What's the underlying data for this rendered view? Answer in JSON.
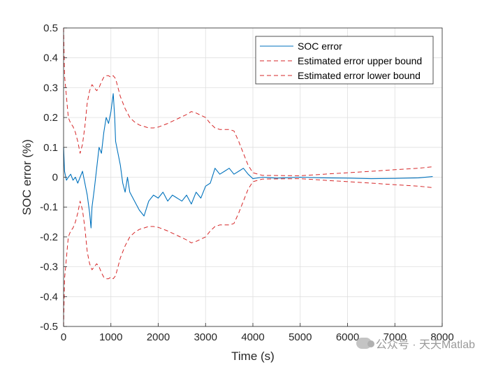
{
  "chart_data": {
    "type": "line",
    "xlabel": "Time (s)",
    "ylabel": "SOC error (%)",
    "xlim": [
      0,
      8000
    ],
    "ylim": [
      -0.5,
      0.5
    ],
    "xticks": [
      0,
      1000,
      2000,
      3000,
      4000,
      5000,
      6000,
      7000,
      8000
    ],
    "yticks": [
      0.5,
      0.4,
      0.3,
      0.2,
      0.1,
      0,
      -0.1,
      -0.2,
      -0.3,
      -0.4,
      -0.5
    ],
    "grid": true,
    "legend_position": "top-right",
    "colors": {
      "soc": "#0072BD",
      "bound": "#D62728",
      "grid": "#dfdfdf",
      "axis": "#262626"
    },
    "series": [
      {
        "name": "SOC error",
        "style": "solid",
        "x": [
          0,
          20,
          60,
          100,
          150,
          200,
          250,
          300,
          350,
          400,
          450,
          500,
          550,
          580,
          600,
          650,
          700,
          750,
          800,
          850,
          900,
          950,
          1000,
          1050,
          1080,
          1100,
          1150,
          1200,
          1250,
          1300,
          1350,
          1400,
          1500,
          1600,
          1700,
          1800,
          1900,
          2000,
          2100,
          2200,
          2300,
          2400,
          2500,
          2600,
          2700,
          2800,
          2900,
          3000,
          3100,
          3200,
          3300,
          3400,
          3500,
          3600,
          3700,
          3800,
          3900,
          4000,
          4200,
          4500,
          5000,
          5500,
          6000,
          6500,
          7000,
          7500,
          7800
        ],
        "y": [
          0.1,
          0.02,
          -0.01,
          0.0,
          0.01,
          -0.01,
          0.0,
          -0.02,
          0.0,
          0.02,
          -0.02,
          -0.06,
          -0.12,
          -0.17,
          -0.1,
          -0.04,
          0.03,
          0.1,
          0.08,
          0.15,
          0.2,
          0.18,
          0.22,
          0.28,
          0.2,
          0.12,
          0.08,
          0.04,
          -0.02,
          -0.05,
          0.0,
          -0.05,
          -0.08,
          -0.11,
          -0.13,
          -0.08,
          -0.06,
          -0.07,
          -0.05,
          -0.08,
          -0.06,
          -0.07,
          -0.08,
          -0.06,
          -0.09,
          -0.05,
          -0.07,
          -0.03,
          -0.02,
          0.03,
          0.01,
          0.02,
          0.03,
          0.01,
          0.02,
          0.03,
          0.01,
          -0.005,
          0.0,
          -0.003,
          0.0,
          -0.002,
          -0.003,
          -0.005,
          -0.004,
          -0.002,
          0.002
        ]
      },
      {
        "name": "Estimated error upper bound",
        "style": "dashed",
        "x": [
          0,
          20,
          60,
          100,
          150,
          200,
          250,
          300,
          350,
          400,
          450,
          500,
          550,
          600,
          650,
          700,
          750,
          800,
          850,
          900,
          950,
          1000,
          1050,
          1100,
          1150,
          1200,
          1300,
          1400,
          1500,
          1600,
          1700,
          1800,
          1900,
          2000,
          2200,
          2400,
          2600,
          2700,
          2800,
          3000,
          3100,
          3200,
          3300,
          3400,
          3500,
          3600,
          3700,
          3800,
          3900,
          4000,
          4200,
          5000,
          5500,
          6000,
          6500,
          7000,
          7500,
          7800
        ],
        "y": [
          0.5,
          0.34,
          0.27,
          0.2,
          0.18,
          0.17,
          0.15,
          0.12,
          0.08,
          0.11,
          0.17,
          0.25,
          0.29,
          0.31,
          0.3,
          0.29,
          0.3,
          0.32,
          0.335,
          0.34,
          0.34,
          0.335,
          0.34,
          0.33,
          0.3,
          0.27,
          0.23,
          0.2,
          0.185,
          0.175,
          0.17,
          0.165,
          0.165,
          0.168,
          0.18,
          0.195,
          0.21,
          0.22,
          0.215,
          0.2,
          0.18,
          0.165,
          0.16,
          0.16,
          0.16,
          0.155,
          0.12,
          0.08,
          0.04,
          0.015,
          0.006,
          0.005,
          0.01,
          0.015,
          0.02,
          0.025,
          0.03,
          0.035
        ]
      },
      {
        "name": "Estimated error lower bound",
        "style": "dashed",
        "x": [
          0,
          20,
          60,
          100,
          150,
          200,
          250,
          300,
          350,
          400,
          450,
          500,
          550,
          600,
          650,
          700,
          750,
          800,
          850,
          900,
          950,
          1000,
          1050,
          1100,
          1150,
          1200,
          1300,
          1400,
          1500,
          1600,
          1700,
          1800,
          1900,
          2000,
          2200,
          2400,
          2600,
          2700,
          2800,
          3000,
          3100,
          3200,
          3300,
          3400,
          3500,
          3600,
          3700,
          3800,
          3900,
          4000,
          4200,
          5000,
          5500,
          6000,
          6500,
          7000,
          7500,
          7800
        ],
        "y": [
          -0.5,
          -0.34,
          -0.27,
          -0.2,
          -0.18,
          -0.17,
          -0.15,
          -0.12,
          -0.08,
          -0.11,
          -0.17,
          -0.25,
          -0.29,
          -0.31,
          -0.3,
          -0.29,
          -0.3,
          -0.32,
          -0.335,
          -0.34,
          -0.34,
          -0.335,
          -0.34,
          -0.33,
          -0.3,
          -0.27,
          -0.23,
          -0.2,
          -0.185,
          -0.175,
          -0.17,
          -0.165,
          -0.165,
          -0.168,
          -0.18,
          -0.195,
          -0.21,
          -0.22,
          -0.215,
          -0.2,
          -0.18,
          -0.165,
          -0.16,
          -0.16,
          -0.16,
          -0.155,
          -0.12,
          -0.08,
          -0.04,
          -0.015,
          -0.006,
          -0.005,
          -0.01,
          -0.015,
          -0.02,
          -0.025,
          -0.03,
          -0.035
        ]
      }
    ]
  },
  "watermark": "公众号 · 天天Matlab"
}
